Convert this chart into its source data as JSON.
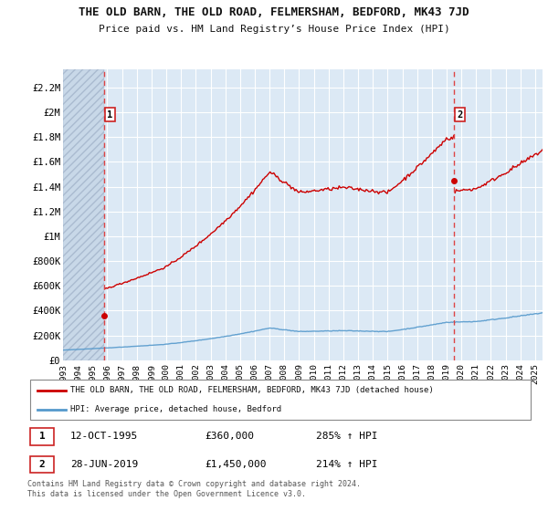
{
  "title": "THE OLD BARN, THE OLD ROAD, FELMERSHAM, BEDFORD, MK43 7JD",
  "subtitle": "Price paid vs. HM Land Registry’s House Price Index (HPI)",
  "ylabel_ticks": [
    "£0",
    "£200K",
    "£400K",
    "£600K",
    "£800K",
    "£1M",
    "£1.2M",
    "£1.4M",
    "£1.6M",
    "£1.8M",
    "£2M",
    "£2.2M"
  ],
  "ytick_values": [
    0,
    200000,
    400000,
    600000,
    800000,
    1000000,
    1200000,
    1400000,
    1600000,
    1800000,
    2000000,
    2200000
  ],
  "ylim": [
    0,
    2350000
  ],
  "xlim_start": 1993.0,
  "xlim_end": 2025.5,
  "xticks": [
    1993,
    1994,
    1995,
    1996,
    1997,
    1998,
    1999,
    2000,
    2001,
    2002,
    2003,
    2004,
    2005,
    2006,
    2007,
    2008,
    2009,
    2010,
    2011,
    2012,
    2013,
    2014,
    2015,
    2016,
    2017,
    2018,
    2019,
    2020,
    2021,
    2022,
    2023,
    2024,
    2025
  ],
  "purchase1_x": 1995.78,
  "purchase1_y": 360000,
  "purchase1_label": "1",
  "purchase2_x": 2019.49,
  "purchase2_y": 1450000,
  "purchase2_label": "2",
  "red_line_color": "#cc0000",
  "blue_line_color": "#5599cc",
  "dashed_line_color": "#dd4444",
  "legend_line1": "THE OLD BARN, THE OLD ROAD, FELMERSHAM, BEDFORD, MK43 7JD (detached house)",
  "legend_line2": "HPI: Average price, detached house, Bedford",
  "table_row1_date": "12-OCT-1995",
  "table_row1_price": "£360,000",
  "table_row1_hpi": "285% ↑ HPI",
  "table_row2_date": "28-JUN-2019",
  "table_row2_price": "£1,450,000",
  "table_row2_hpi": "214% ↑ HPI",
  "footer": "Contains HM Land Registry data © Crown copyright and database right 2024.\nThis data is licensed under the Open Government Licence v3.0.",
  "bg_color": "#ffffff",
  "plot_bg_color": "#dce9f5",
  "grid_color": "#ffffff",
  "hatch_area_color": "#c8d8e8"
}
